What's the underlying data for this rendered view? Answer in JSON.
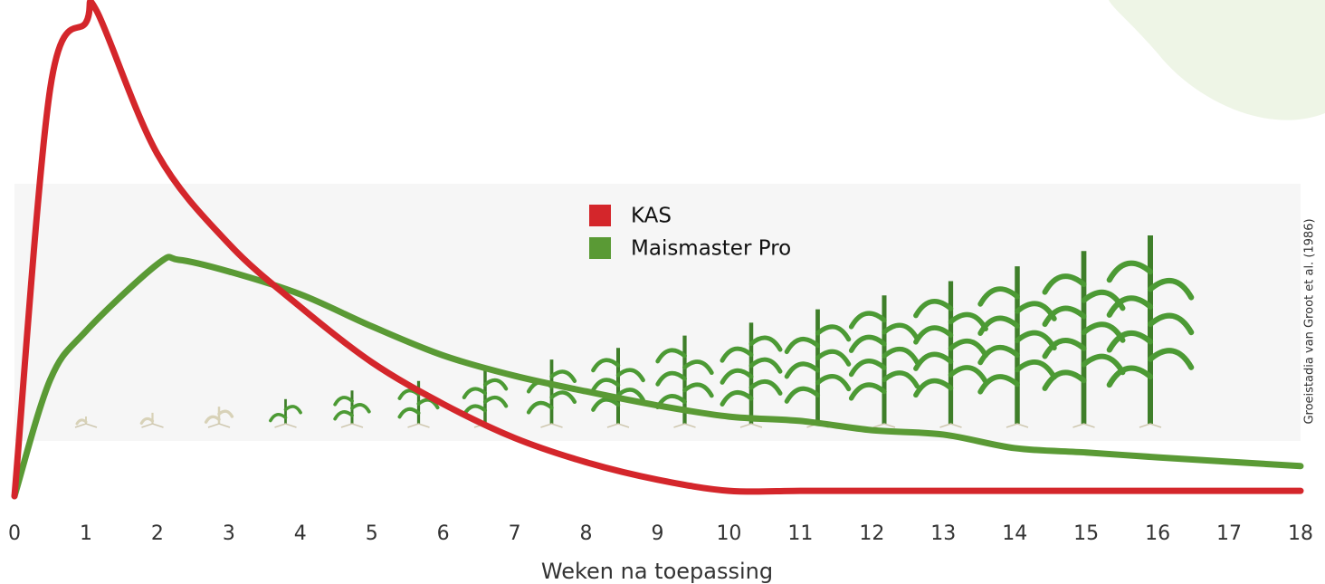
{
  "chart_data": {
    "type": "line",
    "x_label": "Weken na toepassing",
    "note": "Groeistadia van Groot et al. (1986)",
    "xlim": [
      0,
      18
    ],
    "xticks": [
      0,
      1,
      2,
      3,
      4,
      5,
      6,
      7,
      8,
      9,
      10,
      11,
      12,
      13,
      14,
      15,
      16,
      17,
      18
    ],
    "ylim": [
      0,
      100
    ],
    "series": [
      {
        "name": "KAS",
        "color": "#d4262b",
        "x": [
          0,
          0.5,
          1,
          1.15,
          2,
          3,
          4,
          5,
          6,
          7,
          8,
          9,
          10,
          11,
          12,
          13,
          14,
          15,
          16,
          17,
          18
        ],
        "values": [
          0,
          84,
          97.6,
          100,
          70.5,
          52,
          39,
          27.6,
          19,
          12,
          7,
          3.4,
          1.1,
          1.1,
          1.1,
          1.1,
          1.1,
          1.1,
          1.1,
          1.1,
          1.1
        ]
      },
      {
        "name": "Maismaster Pro",
        "color": "#5a9a35",
        "x": [
          0,
          0.5,
          1,
          2,
          2.3,
          3,
          4,
          5,
          6,
          7,
          8,
          9,
          10,
          11,
          12,
          13,
          14,
          15,
          16,
          17,
          18
        ],
        "values": [
          0,
          24,
          34,
          47.8,
          48.7,
          46.3,
          41.6,
          35,
          29,
          24.8,
          21.6,
          18.7,
          16.4,
          15.5,
          13.6,
          12.7,
          9.9,
          9,
          8,
          7.1,
          6.2
        ]
      }
    ]
  }
}
